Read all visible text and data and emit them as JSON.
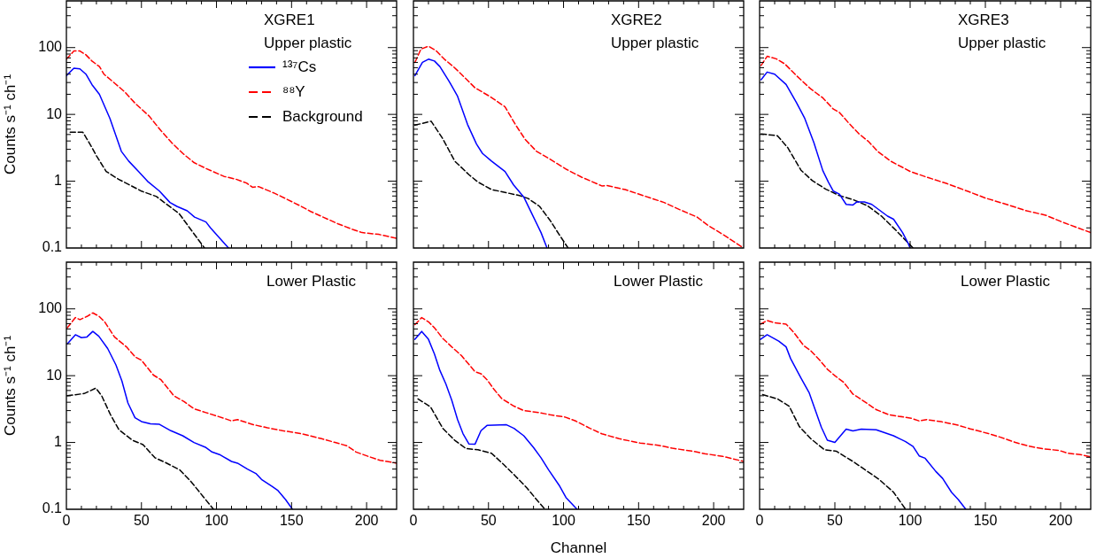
{
  "chart_data": [
    {
      "type": "line",
      "ylabel": "Counts s⁻¹ ch⁻¹",
      "annotations": [
        "XGRE1",
        "Upper plastic"
      ],
      "legend": "top right",
      "log": "y",
      "grid": false,
      "tick_labels": "y",
      "xlim": [
        0,
        220
      ],
      "ylim": [
        0.1,
        500
      ],
      "xticks": [
        0,
        {
          "value": 10,
          "label": null
        },
        {
          "value": 20,
          "label": null
        },
        {
          "value": 30,
          "label": null
        },
        {
          "value": 40,
          "label": null
        },
        50,
        {
          "value": 60,
          "label": null
        },
        {
          "value": 70,
          "label": null
        },
        {
          "value": 80,
          "label": null
        },
        {
          "value": 90,
          "label": null
        },
        100,
        {
          "value": 110,
          "label": null
        },
        {
          "value": 120,
          "label": null
        },
        {
          "value": 130,
          "label": null
        },
        {
          "value": 140,
          "label": null
        },
        150,
        {
          "value": 160,
          "label": null
        },
        {
          "value": 170,
          "label": null
        },
        {
          "value": 180,
          "label": null
        },
        {
          "value": 190,
          "label": null
        },
        200,
        {
          "value": 210,
          "label": null
        }
      ],
      "yticks": [
        0.1,
        {
          "value": 0.2,
          "label": null
        },
        {
          "value": 0.3,
          "label": null
        },
        {
          "value": 0.4,
          "label": null
        },
        {
          "value": 0.5,
          "label": null
        },
        {
          "value": 0.6,
          "label": null
        },
        {
          "value": 0.7,
          "label": null
        },
        {
          "value": 0.8,
          "label": null
        },
        {
          "value": 0.9,
          "label": null
        },
        1,
        {
          "value": 2,
          "label": null
        },
        {
          "value": 3,
          "label": null
        },
        {
          "value": 4,
          "label": null
        },
        {
          "value": 5,
          "label": null
        },
        {
          "value": 6,
          "label": null
        },
        {
          "value": 7,
          "label": null
        },
        {
          "value": 8,
          "label": null
        },
        {
          "value": 9,
          "label": null
        },
        10,
        {
          "value": 20,
          "label": null
        },
        {
          "value": 30,
          "label": null
        },
        {
          "value": 40,
          "label": null
        },
        {
          "value": 50,
          "label": null
        },
        {
          "value": 60,
          "label": null
        },
        {
          "value": 70,
          "label": null
        },
        {
          "value": 80,
          "label": null
        },
        {
          "value": 90,
          "label": null
        },
        100,
        {
          "value": 200,
          "label": null
        },
        {
          "value": 300,
          "label": null
        },
        {
          "value": 400,
          "label": null
        }
      ],
      "series": [
        {
          "name": "¹³⁷Cs",
          "color": "#0000ff",
          "line_style": "solid",
          "x": [
            0,
            5,
            9,
            13,
            17,
            22,
            29,
            36.6,
            41.5,
            48,
            54,
            62,
            69,
            73.6,
            80.5,
            85.4,
            93,
            96,
            101,
            108
          ],
          "values": [
            38,
            49,
            48,
            40,
            28,
            20,
            8.7,
            2.8,
            2.0,
            1.4,
            1.0,
            0.71,
            0.48,
            0.42,
            0.36,
            0.29,
            0.245,
            0.2,
            0.15,
            0.1
          ]
        },
        {
          "name": "⁸⁸Y",
          "color": "#ff0000",
          "line_style": "dashed",
          "x": [
            0,
            5,
            9,
            13,
            17,
            22,
            25,
            32,
            38.6,
            46,
            55,
            63,
            70,
            77.6,
            85,
            93,
            105,
            113,
            120,
            124,
            128,
            138,
            146,
            155.5,
            163,
            171,
            181,
            190.6,
            197,
            208,
            220
          ],
          "values": [
            67,
            89,
            89,
            78,
            63,
            52,
            40,
            29.5,
            22,
            14.5,
            9.5,
            5.7,
            3.8,
            2.6,
            1.9,
            1.55,
            1.18,
            1.07,
            0.94,
            0.81,
            0.83,
            0.67,
            0.55,
            0.43,
            0.35,
            0.29,
            0.23,
            0.19,
            0.17,
            0.16,
            0.14
          ]
        },
        {
          "name": "Background",
          "color": "#000000",
          "line_style": "dashed",
          "x": [
            2.5,
            11,
            16,
            20,
            26.5,
            34.7,
            42.5,
            50,
            60,
            68,
            75,
            83.6,
            92
          ],
          "values": [
            5.4,
            5.4,
            3.5,
            2.4,
            1.4,
            1.07,
            0.87,
            0.71,
            0.59,
            0.43,
            0.33,
            0.18,
            0.1
          ]
        }
      ]
    },
    {
      "type": "line",
      "annotations": [
        "XGRE2",
        "Upper plastic"
      ],
      "log": "y",
      "grid": false,
      "tick_labels": false,
      "xlim": [
        0,
        220
      ],
      "ylim": [
        0.1,
        500
      ],
      "xticks": [
        0,
        {
          "value": 10,
          "label": null
        },
        {
          "value": 20,
          "label": null
        },
        {
          "value": 30,
          "label": null
        },
        {
          "value": 40,
          "label": null
        },
        50,
        {
          "value": 60,
          "label": null
        },
        {
          "value": 70,
          "label": null
        },
        {
          "value": 80,
          "label": null
        },
        {
          "value": 90,
          "label": null
        },
        100,
        {
          "value": 110,
          "label": null
        },
        {
          "value": 120,
          "label": null
        },
        {
          "value": 130,
          "label": null
        },
        {
          "value": 140,
          "label": null
        },
        150,
        {
          "value": 160,
          "label": null
        },
        {
          "value": 170,
          "label": null
        },
        {
          "value": 180,
          "label": null
        },
        {
          "value": 190,
          "label": null
        },
        200,
        {
          "value": 210,
          "label": null
        }
      ],
      "yticks": [
        0.1,
        {
          "value": 0.2,
          "label": null
        },
        {
          "value": 0.3,
          "label": null
        },
        {
          "value": 0.4,
          "label": null
        },
        {
          "value": 0.5,
          "label": null
        },
        {
          "value": 0.6,
          "label": null
        },
        {
          "value": 0.7,
          "label": null
        },
        {
          "value": 0.8,
          "label": null
        },
        {
          "value": 0.9,
          "label": null
        },
        1,
        {
          "value": 2,
          "label": null
        },
        {
          "value": 3,
          "label": null
        },
        {
          "value": 4,
          "label": null
        },
        {
          "value": 5,
          "label": null
        },
        {
          "value": 6,
          "label": null
        },
        {
          "value": 7,
          "label": null
        },
        {
          "value": 8,
          "label": null
        },
        {
          "value": 9,
          "label": null
        },
        10,
        {
          "value": 20,
          "label": null
        },
        {
          "value": 30,
          "label": null
        },
        {
          "value": 40,
          "label": null
        },
        {
          "value": 50,
          "label": null
        },
        {
          "value": 60,
          "label": null
        },
        {
          "value": 70,
          "label": null
        },
        {
          "value": 80,
          "label": null
        },
        {
          "value": 90,
          "label": null
        },
        100,
        {
          "value": 200,
          "label": null
        },
        {
          "value": 300,
          "label": null
        },
        {
          "value": 400,
          "label": null
        }
      ],
      "series": [
        {
          "color": "#0000ff",
          "line_style": "solid",
          "x": [
            1,
            6,
            10,
            14,
            17.6,
            23.5,
            29.4,
            36,
            42,
            46,
            52,
            61,
            66.7,
            73.5,
            80,
            85,
            89
          ],
          "values": [
            38,
            60,
            67,
            63,
            52,
            32,
            18.7,
            7.1,
            3.6,
            2.6,
            2.0,
            1.4,
            0.88,
            0.58,
            0.29,
            0.17,
            0.1
          ]
        },
        {
          "color": "#ff0000",
          "line_style": "dashed",
          "x": [
            1,
            5,
            10,
            15,
            20.6,
            26.5,
            30,
            41,
            51,
            61,
            68,
            74.5,
            82,
            90,
            102,
            112,
            125.5,
            129,
            141,
            153,
            167,
            178,
            189,
            196,
            206,
            220
          ],
          "values": [
            60,
            95,
            105,
            90,
            67,
            52,
            44,
            25,
            18.5,
            13,
            7,
            4.2,
            2.8,
            2.2,
            1.5,
            1.15,
            0.85,
            0.86,
            0.75,
            0.61,
            0.48,
            0.37,
            0.29,
            0.22,
            0.16,
            0.1
          ]
        },
        {
          "color": "#000000",
          "line_style": "dashed",
          "x": [
            1,
            11.8,
            19.6,
            27.5,
            37,
            43,
            52,
            61,
            70.6,
            76.5,
            84,
            91,
            97,
            103
          ],
          "values": [
            6.9,
            7.9,
            4.3,
            2.0,
            1.25,
            0.97,
            0.75,
            0.68,
            0.61,
            0.55,
            0.42,
            0.26,
            0.16,
            0.1
          ]
        }
      ]
    },
    {
      "type": "line",
      "annotations": [
        "XGRE3",
        "Upper plastic"
      ],
      "log": "y",
      "grid": false,
      "tick_labels": false,
      "xlim": [
        0,
        220
      ],
      "ylim": [
        0.1,
        500
      ],
      "xticks": [
        0,
        {
          "value": 10,
          "label": null
        },
        {
          "value": 20,
          "label": null
        },
        {
          "value": 30,
          "label": null
        },
        {
          "value": 40,
          "label": null
        },
        50,
        {
          "value": 60,
          "label": null
        },
        {
          "value": 70,
          "label": null
        },
        {
          "value": 80,
          "label": null
        },
        {
          "value": 90,
          "label": null
        },
        100,
        {
          "value": 110,
          "label": null
        },
        {
          "value": 120,
          "label": null
        },
        {
          "value": 130,
          "label": null
        },
        {
          "value": 140,
          "label": null
        },
        150,
        {
          "value": 160,
          "label": null
        },
        {
          "value": 170,
          "label": null
        },
        {
          "value": 180,
          "label": null
        },
        {
          "value": 190,
          "label": null
        },
        200,
        {
          "value": 210,
          "label": null
        }
      ],
      "yticks": [
        0.1,
        {
          "value": 0.2,
          "label": null
        },
        {
          "value": 0.3,
          "label": null
        },
        {
          "value": 0.4,
          "label": null
        },
        {
          "value": 0.5,
          "label": null
        },
        {
          "value": 0.6,
          "label": null
        },
        {
          "value": 0.7,
          "label": null
        },
        {
          "value": 0.8,
          "label": null
        },
        {
          "value": 0.9,
          "label": null
        },
        1,
        {
          "value": 2,
          "label": null
        },
        {
          "value": 3,
          "label": null
        },
        {
          "value": 4,
          "label": null
        },
        {
          "value": 5,
          "label": null
        },
        {
          "value": 6,
          "label": null
        },
        {
          "value": 7,
          "label": null
        },
        {
          "value": 8,
          "label": null
        },
        {
          "value": 9,
          "label": null
        },
        10,
        {
          "value": 20,
          "label": null
        },
        {
          "value": 30,
          "label": null
        },
        {
          "value": 40,
          "label": null
        },
        {
          "value": 50,
          "label": null
        },
        {
          "value": 60,
          "label": null
        },
        {
          "value": 70,
          "label": null
        },
        {
          "value": 80,
          "label": null
        },
        {
          "value": 90,
          "label": null
        },
        100,
        {
          "value": 200,
          "label": null
        },
        {
          "value": 300,
          "label": null
        },
        {
          "value": 400,
          "label": null
        }
      ],
      "series": [
        {
          "color": "#0000ff",
          "line_style": "solid",
          "x": [
            1,
            5,
            10,
            17.6,
            24.5,
            30,
            36,
            42,
            45.7,
            49,
            53,
            57.5,
            62,
            64.7,
            69.6,
            74.5,
            85,
            89,
            95,
            98.5,
            100
          ],
          "values": [
            33,
            43,
            40,
            28,
            15,
            8.7,
            3.8,
            1.44,
            0.97,
            0.71,
            0.64,
            0.45,
            0.44,
            0.49,
            0.49,
            0.45,
            0.3,
            0.27,
            0.17,
            0.12,
            0.1
          ]
        },
        {
          "color": "#ff0000",
          "line_style": "dashed",
          "x": [
            1,
            5,
            11,
            16.7,
            24.5,
            34,
            42,
            49,
            53,
            59,
            65.7,
            72.5,
            78.4,
            87,
            100,
            111,
            124.5,
            138,
            150,
            164,
            177.5,
            190,
            201,
            220
          ],
          "values": [
            54,
            74,
            68,
            57,
            38,
            24,
            17.7,
            12,
            10.7,
            7.5,
            5.2,
            3.9,
            2.8,
            2.0,
            1.4,
            1.15,
            0.92,
            0.71,
            0.56,
            0.45,
            0.36,
            0.31,
            0.245,
            0.17
          ]
        },
        {
          "color": "#000000",
          "line_style": "dashed",
          "x": [
            1,
            11.8,
            18.6,
            27.5,
            35,
            44,
            53,
            62,
            71.6,
            81,
            91,
            102
          ],
          "values": [
            5.1,
            4.8,
            3.2,
            1.46,
            1.02,
            0.76,
            0.61,
            0.53,
            0.43,
            0.3,
            0.18,
            0.1
          ]
        }
      ]
    },
    {
      "type": "line",
      "ylabel": "Counts s⁻¹ ch⁻¹",
      "annotations": [
        "Lower Plastic"
      ],
      "log": "y",
      "grid": false,
      "xlim": [
        0,
        220
      ],
      "ylim": [
        0.1,
        500
      ],
      "xticks": [
        0,
        {
          "value": 10,
          "label": null
        },
        {
          "value": 20,
          "label": null
        },
        {
          "value": 30,
          "label": null
        },
        {
          "value": 40,
          "label": null
        },
        50,
        {
          "value": 60,
          "label": null
        },
        {
          "value": 70,
          "label": null
        },
        {
          "value": 80,
          "label": null
        },
        {
          "value": 90,
          "label": null
        },
        100,
        {
          "value": 110,
          "label": null
        },
        {
          "value": 120,
          "label": null
        },
        {
          "value": 130,
          "label": null
        },
        {
          "value": 140,
          "label": null
        },
        150,
        {
          "value": 160,
          "label": null
        },
        {
          "value": 170,
          "label": null
        },
        {
          "value": 180,
          "label": null
        },
        {
          "value": 190,
          "label": null
        },
        200,
        {
          "value": 210,
          "label": null
        }
      ],
      "yticks": [
        0.1,
        {
          "value": 0.2,
          "label": null
        },
        {
          "value": 0.3,
          "label": null
        },
        {
          "value": 0.4,
          "label": null
        },
        {
          "value": 0.5,
          "label": null
        },
        {
          "value": 0.6,
          "label": null
        },
        {
          "value": 0.7,
          "label": null
        },
        {
          "value": 0.8,
          "label": null
        },
        {
          "value": 0.9,
          "label": null
        },
        1,
        {
          "value": 2,
          "label": null
        },
        {
          "value": 3,
          "label": null
        },
        {
          "value": 4,
          "label": null
        },
        {
          "value": 5,
          "label": null
        },
        {
          "value": 6,
          "label": null
        },
        {
          "value": 7,
          "label": null
        },
        {
          "value": 8,
          "label": null
        },
        {
          "value": 9,
          "label": null
        },
        10,
        {
          "value": 20,
          "label": null
        },
        {
          "value": 30,
          "label": null
        },
        {
          "value": 40,
          "label": null
        },
        {
          "value": 50,
          "label": null
        },
        {
          "value": 60,
          "label": null
        },
        {
          "value": 70,
          "label": null
        },
        {
          "value": 80,
          "label": null
        },
        {
          "value": 90,
          "label": null
        },
        100,
        {
          "value": 200,
          "label": null
        },
        {
          "value": 300,
          "label": null
        },
        {
          "value": 400,
          "label": null
        }
      ],
      "series": [
        {
          "color": "#0000ff",
          "line_style": "solid",
          "x": [
            0.6,
            6,
            10,
            13.7,
            17.6,
            21.6,
            27.5,
            33,
            37,
            41,
            45.7,
            50,
            56,
            62,
            69.6,
            77.5,
            85,
            93,
            97,
            102,
            110,
            114,
            120.6,
            126.5,
            130,
            137,
            141,
            146,
            150.6
          ],
          "values": [
            30,
            41,
            37,
            38,
            46,
            39,
            25.5,
            14.5,
            8.3,
            3.9,
            2.35,
            2.06,
            1.9,
            1.87,
            1.5,
            1.26,
            1.0,
            0.84,
            0.72,
            0.66,
            0.52,
            0.49,
            0.4,
            0.34,
            0.28,
            0.22,
            0.19,
            0.14,
            0.1
          ]
        },
        {
          "color": "#ff0000",
          "line_style": "dashed",
          "x": [
            0.6,
            6,
            9,
            13.7,
            17.6,
            21.6,
            25.5,
            32,
            40,
            46,
            50,
            58,
            63,
            71.6,
            78.4,
            85,
            93,
            100,
            105,
            110,
            114,
            124.5,
            134,
            144,
            152,
            158,
            170,
            179,
            187,
            193,
            201,
            209,
            220
          ],
          "values": [
            52,
            74,
            69,
            77,
            87,
            78,
            64,
            38,
            27,
            19,
            17,
            10.2,
            8.7,
            5.0,
            4.1,
            3.2,
            2.8,
            2.5,
            2.3,
            2.1,
            2.2,
            1.85,
            1.66,
            1.5,
            1.41,
            1.33,
            1.14,
            1.0,
            0.89,
            0.72,
            0.62,
            0.54,
            0.49
          ]
        },
        {
          "color": "#000000",
          "line_style": "dashed",
          "x": [
            0.6,
            11.8,
            19.6,
            23.5,
            29.4,
            35,
            44,
            51,
            59,
            66,
            75.5,
            83,
            91,
            98
          ],
          "values": [
            5.0,
            5.4,
            6.5,
            5.0,
            2.6,
            1.55,
            1.08,
            0.93,
            0.59,
            0.5,
            0.39,
            0.26,
            0.156,
            0.1
          ]
        }
      ]
    },
    {
      "type": "line",
      "xlabel": "Channel",
      "annotations": [
        "Lower Plastic"
      ],
      "log": "y",
      "grid": false,
      "tick_labels": "x",
      "xlim": [
        0,
        220
      ],
      "ylim": [
        0.1,
        500
      ],
      "xticks": [
        0,
        {
          "value": 10,
          "label": null
        },
        {
          "value": 20,
          "label": null
        },
        {
          "value": 30,
          "label": null
        },
        {
          "value": 40,
          "label": null
        },
        50,
        {
          "value": 60,
          "label": null
        },
        {
          "value": 70,
          "label": null
        },
        {
          "value": 80,
          "label": null
        },
        {
          "value": 90,
          "label": null
        },
        100,
        {
          "value": 110,
          "label": null
        },
        {
          "value": 120,
          "label": null
        },
        {
          "value": 130,
          "label": null
        },
        {
          "value": 140,
          "label": null
        },
        150,
        {
          "value": 160,
          "label": null
        },
        {
          "value": 170,
          "label": null
        },
        {
          "value": 180,
          "label": null
        },
        {
          "value": 190,
          "label": null
        },
        200,
        {
          "value": 210,
          "label": null
        }
      ],
      "yticks": [
        0.1,
        {
          "value": 0.2,
          "label": null
        },
        {
          "value": 0.3,
          "label": null
        },
        {
          "value": 0.4,
          "label": null
        },
        {
          "value": 0.5,
          "label": null
        },
        {
          "value": 0.6,
          "label": null
        },
        {
          "value": 0.7,
          "label": null
        },
        {
          "value": 0.8,
          "label": null
        },
        {
          "value": 0.9,
          "label": null
        },
        1,
        {
          "value": 2,
          "label": null
        },
        {
          "value": 3,
          "label": null
        },
        {
          "value": 4,
          "label": null
        },
        {
          "value": 5,
          "label": null
        },
        {
          "value": 6,
          "label": null
        },
        {
          "value": 7,
          "label": null
        },
        {
          "value": 8,
          "label": null
        },
        {
          "value": 9,
          "label": null
        },
        10,
        {
          "value": 20,
          "label": null
        },
        {
          "value": 30,
          "label": null
        },
        {
          "value": 40,
          "label": null
        },
        {
          "value": 50,
          "label": null
        },
        {
          "value": 60,
          "label": null
        },
        {
          "value": 70,
          "label": null
        },
        {
          "value": 80,
          "label": null
        },
        {
          "value": 90,
          "label": null
        },
        100,
        {
          "value": 200,
          "label": null
        },
        {
          "value": 300,
          "label": null
        },
        {
          "value": 400,
          "label": null
        }
      ],
      "series": [
        {
          "color": "#0000ff",
          "line_style": "solid",
          "x": [
            1,
            5.5,
            10,
            14,
            17.6,
            21.6,
            25.5,
            29.4,
            33,
            37,
            41,
            45,
            49,
            62,
            67,
            73.5,
            80,
            85,
            90,
            97,
            101.6,
            109
          ],
          "values": [
            35,
            46,
            35,
            21,
            12,
            7.5,
            4.3,
            2.2,
            1.36,
            0.95,
            0.94,
            1.5,
            1.8,
            1.84,
            1.63,
            1.26,
            0.84,
            0.59,
            0.39,
            0.23,
            0.15,
            0.1
          ]
        },
        {
          "color": "#ff0000",
          "line_style": "dashed",
          "x": [
            1,
            5.5,
            10,
            14,
            19.6,
            25.5,
            32,
            41,
            45,
            49,
            54,
            59,
            67,
            73.5,
            84,
            91,
            101,
            108,
            117.6,
            125.5,
            137,
            151,
            163,
            172.5,
            186,
            194,
            206,
            220
          ],
          "values": [
            58,
            74,
            64,
            52,
            36,
            27,
            20,
            11.5,
            10.7,
            8.7,
            6.1,
            4.5,
            3.5,
            3.0,
            2.8,
            2.6,
            2.4,
            2.1,
            1.63,
            1.35,
            1.14,
            0.98,
            0.91,
            0.82,
            0.74,
            0.68,
            0.62,
            0.52
          ]
        },
        {
          "color": "#000000",
          "line_style": "dashed",
          "x": [
            3,
            11.4,
            19.6,
            27.5,
            35,
            43,
            52,
            60,
            67.6,
            75.5,
            82,
            87.6
          ],
          "values": [
            4.5,
            3.4,
            1.62,
            1.08,
            0.81,
            0.78,
            0.69,
            0.47,
            0.32,
            0.21,
            0.14,
            0.1
          ]
        }
      ]
    },
    {
      "type": "line",
      "annotations": [
        "Lower Plastic"
      ],
      "log": "y",
      "grid": false,
      "tick_labels": "x",
      "xlim": [
        0,
        220
      ],
      "ylim": [
        0.1,
        500
      ],
      "xticks": [
        0,
        {
          "value": 10,
          "label": null
        },
        {
          "value": 20,
          "label": null
        },
        {
          "value": 30,
          "label": null
        },
        {
          "value": 40,
          "label": null
        },
        50,
        {
          "value": 60,
          "label": null
        },
        {
          "value": 70,
          "label": null
        },
        {
          "value": 80,
          "label": null
        },
        {
          "value": 90,
          "label": null
        },
        100,
        {
          "value": 110,
          "label": null
        },
        {
          "value": 120,
          "label": null
        },
        {
          "value": 130,
          "label": null
        },
        {
          "value": 140,
          "label": null
        },
        150,
        {
          "value": 160,
          "label": null
        },
        {
          "value": 170,
          "label": null
        },
        {
          "value": 180,
          "label": null
        },
        {
          "value": 190,
          "label": null
        },
        200,
        {
          "value": 210,
          "label": null
        }
      ],
      "yticks": [
        0.1,
        {
          "value": 0.2,
          "label": null
        },
        {
          "value": 0.3,
          "label": null
        },
        {
          "value": 0.4,
          "label": null
        },
        {
          "value": 0.5,
          "label": null
        },
        {
          "value": 0.6,
          "label": null
        },
        {
          "value": 0.7,
          "label": null
        },
        {
          "value": 0.8,
          "label": null
        },
        {
          "value": 0.9,
          "label": null
        },
        1,
        {
          "value": 2,
          "label": null
        },
        {
          "value": 3,
          "label": null
        },
        {
          "value": 4,
          "label": null
        },
        {
          "value": 5,
          "label": null
        },
        {
          "value": 6,
          "label": null
        },
        {
          "value": 7,
          "label": null
        },
        {
          "value": 8,
          "label": null
        },
        {
          "value": 9,
          "label": null
        },
        10,
        {
          "value": 20,
          "label": null
        },
        {
          "value": 30,
          "label": null
        },
        {
          "value": 40,
          "label": null
        },
        {
          "value": 50,
          "label": null
        },
        {
          "value": 60,
          "label": null
        },
        {
          "value": 70,
          "label": null
        },
        {
          "value": 80,
          "label": null
        },
        {
          "value": 90,
          "label": null
        },
        100,
        {
          "value": 200,
          "label": null
        },
        {
          "value": 300,
          "label": null
        },
        {
          "value": 400,
          "label": null
        }
      ],
      "series": [
        {
          "color": "#0000ff",
          "line_style": "solid",
          "x": [
            0.6,
            5,
            12.7,
            17.6,
            20.6,
            27.5,
            33,
            41,
            45,
            50,
            57.5,
            62,
            67.6,
            77.5,
            89,
            97,
            102,
            106,
            110,
            117,
            121.6,
            127.5,
            132,
            137
          ],
          "values": [
            35,
            41,
            33,
            27,
            18,
            9.2,
            5.5,
            1.7,
            1.08,
            1.0,
            1.58,
            1.49,
            1.58,
            1.55,
            1.26,
            1.03,
            0.87,
            0.63,
            0.58,
            0.37,
            0.29,
            0.18,
            0.14,
            0.1
          ]
        },
        {
          "color": "#ff0000",
          "line_style": "dashed",
          "x": [
            0.6,
            5,
            10,
            17.6,
            22.5,
            29.4,
            34,
            40,
            45,
            50,
            56,
            62,
            69.6,
            77.5,
            86,
            101,
            106,
            111,
            120.6,
            132,
            140,
            152,
            160,
            170,
            179,
            189,
            199,
            205,
            213,
            220
          ],
          "values": [
            59,
            67,
            62,
            59,
            45,
            28,
            23.6,
            17,
            12.5,
            10,
            7.9,
            5.3,
            4.1,
            3.1,
            2.6,
            2.3,
            2.1,
            2.2,
            2.05,
            1.81,
            1.6,
            1.36,
            1.2,
            1.0,
            0.88,
            0.8,
            0.76,
            0.69,
            0.66,
            0.61
          ]
        },
        {
          "color": "#000000",
          "line_style": "dashed",
          "x": [
            2,
            11.8,
            19.6,
            26.5,
            34,
            43,
            51,
            62,
            71.6,
            79.4,
            89,
            97
          ],
          "values": [
            5.2,
            4.5,
            3.5,
            1.72,
            1.14,
            0.78,
            0.74,
            0.52,
            0.37,
            0.28,
            0.18,
            0.1
          ]
        }
      ]
    }
  ]
}
